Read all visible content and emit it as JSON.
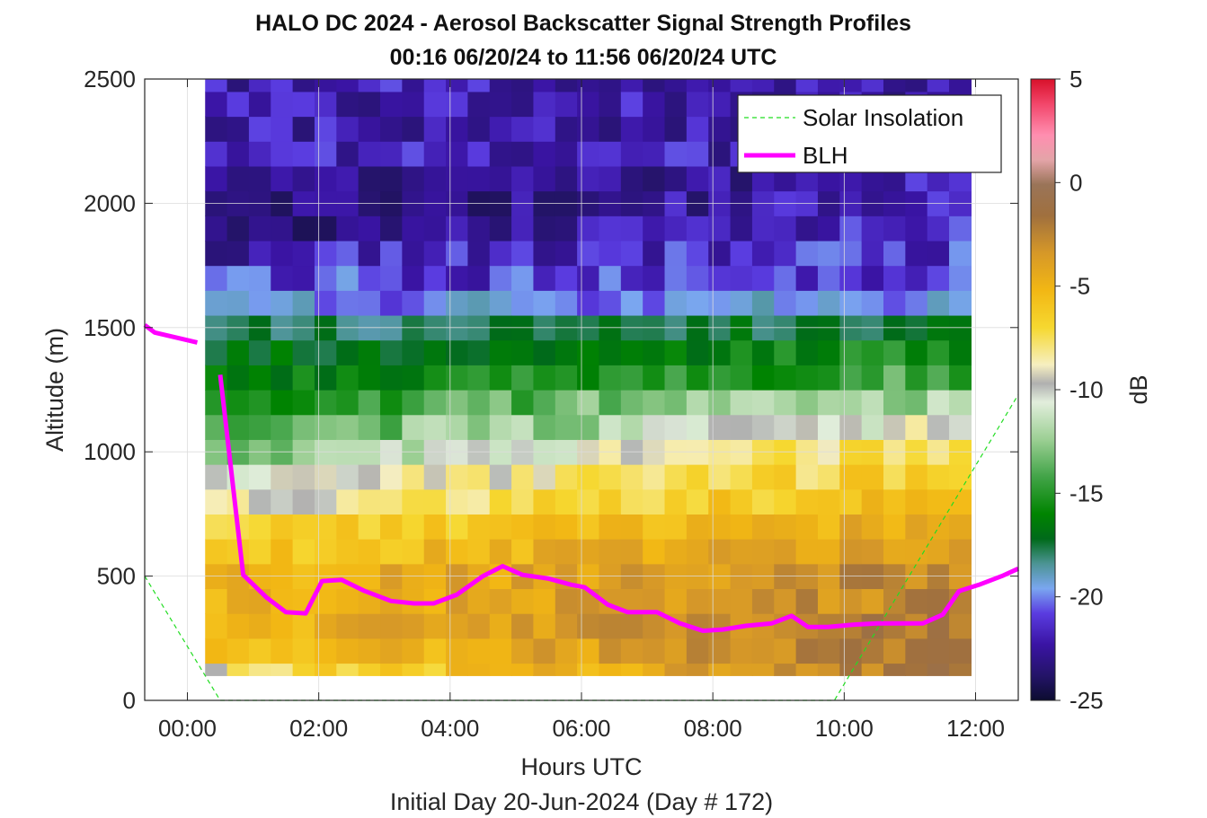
{
  "chart_data": {
    "type": "heatmap",
    "title": "HALO DC 2024 - Aerosol Backscatter Signal Strength Profiles",
    "subtitle": "00:16 06/20/24 to 11:56 06/20/24  UTC",
    "xlabel": "Hours UTC",
    "xlabel2": "Initial Day 20-Jun-2024 (Day # 172)",
    "ylabel": "Altitude (m)",
    "xlim": [
      -0.65,
      12.65
    ],
    "ylim": [
      0,
      2500
    ],
    "xticks": [
      0,
      2,
      4,
      6,
      8,
      10,
      12
    ],
    "xtick_labels": [
      "00:00",
      "02:00",
      "04:00",
      "06:00",
      "08:00",
      "10:00",
      "12:00"
    ],
    "yticks": [
      0,
      500,
      1000,
      1500,
      2000,
      2500
    ],
    "ytick_labels": [
      "0",
      "500",
      "1000",
      "1500",
      "2000",
      "2500"
    ],
    "grid": true,
    "colorbar": {
      "label": "dB",
      "range": [
        -25,
        5
      ],
      "ticks": [
        5,
        0,
        -5,
        -10,
        -15,
        -20,
        -25
      ],
      "tick_labels": [
        "5",
        "0",
        "-5",
        "-10",
        "-15",
        "-20",
        "-25"
      ]
    },
    "heatmap": {
      "x_start": 0.27,
      "x_end": 11.93,
      "y_levels_m": [
        100,
        150,
        250,
        350,
        450,
        550,
        650,
        750,
        850,
        950,
        1050,
        1150,
        1250,
        1350,
        1450,
        1550,
        1650,
        1750,
        1850,
        1950,
        2050,
        2150,
        2250,
        2350,
        2450,
        2500
      ],
      "signal_db_profile_early": [
        -9,
        -7,
        -6,
        -6,
        -6,
        -7,
        -8,
        -10,
        -11,
        -13,
        -14,
        -15,
        -16,
        -17,
        -18,
        -20,
        -21,
        -22,
        -23,
        -23,
        -23,
        -22,
        -22,
        -22,
        -22
      ],
      "signal_db_profile_late": [
        -2,
        -2,
        -2,
        -3,
        -3,
        -4,
        -5,
        -6,
        -7,
        -8,
        -10,
        -12,
        -14,
        -15,
        -17,
        -20,
        -21,
        -21,
        -21,
        -22,
        -22,
        -22,
        -22,
        -22,
        -22
      ]
    },
    "series": [
      {
        "name": "Solar Insolation",
        "style": "dashed",
        "color": "#22dd22",
        "x": [
          -0.65,
          0.5,
          9.85,
          12.65
        ],
        "y": [
          500,
          0,
          0,
          1230
        ]
      },
      {
        "name": "BLH",
        "style": "solid",
        "color": "#ff00ff",
        "segments": [
          {
            "x": [
              -0.65,
              -0.5,
              0.15
            ],
            "y": [
              1510,
              1480,
              1440
            ]
          },
          {
            "x": [
              0.5,
              0.85,
              1.2,
              1.5,
              1.8,
              2.05,
              2.35,
              2.7,
              3.1,
              3.45,
              3.75,
              4.1,
              4.5,
              4.8,
              5.1,
              5.5,
              5.85,
              6.05,
              6.4,
              6.7,
              7.15,
              7.5,
              7.85,
              8.15,
              8.5,
              8.9,
              9.2,
              9.45,
              9.75,
              10.15,
              10.5,
              10.8,
              11.2,
              11.5,
              11.75,
              12.05,
              12.4,
              12.65
            ],
            "y": [
              1310,
              505,
              415,
              355,
              350,
              480,
              485,
              440,
              400,
              390,
              390,
              425,
              500,
              540,
              505,
              490,
              465,
              455,
              385,
              355,
              355,
              310,
              280,
              285,
              300,
              310,
              340,
              295,
              295,
              305,
              310,
              310,
              310,
              345,
              440,
              465,
              500,
              530
            ]
          }
        ]
      }
    ],
    "legend": {
      "placement": "top-right",
      "entries": [
        "Solar Insolation",
        "BLH"
      ]
    }
  }
}
